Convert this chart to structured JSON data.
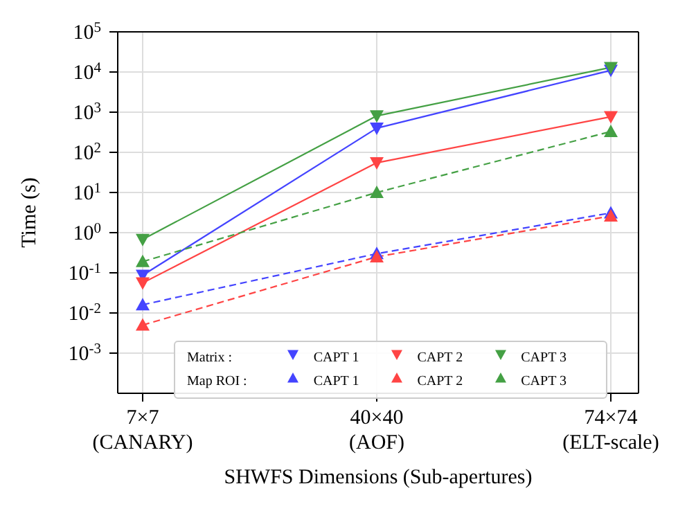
{
  "chart_data": {
    "type": "line",
    "xlabel": "SHWFS Dimensions (Sub-apertures)",
    "ylabel": "Time (s)",
    "categories": [
      "7×7\n(CANARY)",
      "40×40\n(AOF)",
      "74×74\n(ELT-scale)"
    ],
    "series": [
      {
        "name": "CAPT 1",
        "color": "#4444ff",
        "values": [
          0.087,
          400,
          11000
        ],
        "marker": "triangle-down",
        "line_style": "solid"
      },
      {
        "name": "CAPT 2",
        "color": "#ff4444",
        "values": [
          0.056,
          55,
          770
        ],
        "marker": "triangle-down",
        "line_style": "solid"
      },
      {
        "name": "CAPT 3",
        "color": "#44a044",
        "values": [
          0.68,
          810,
          13000
        ],
        "marker": "triangle-down",
        "line_style": "solid"
      },
      {
        "name": "CAPT 1",
        "color": "#4444ff",
        "values": [
          0.016,
          0.3,
          3.1
        ],
        "marker": "triangle",
        "line_style": "dashed"
      },
      {
        "name": "CAPT 2",
        "color": "#ff4444",
        "values": [
          0.005,
          0.25,
          2.6
        ],
        "marker": "triangle",
        "line_style": "dashed"
      },
      {
        "name": "CAPT 3",
        "color": "#44a044",
        "values": [
          0.19,
          10,
          330
        ],
        "marker": "triangle",
        "line_style": "dashed"
      }
    ],
    "annotations": [
      "Matrix :",
      "Map ROI :"
    ],
    "log": "y",
    "ylim": [
      0.0001,
      100000
    ],
    "yticks": [
      {
        "value": 0.001,
        "label": "10$^{-3}$"
      },
      {
        "value": 0.01,
        "label": "10$^{-2}$"
      },
      {
        "value": 0.1,
        "label": "10$^{-1}$"
      },
      {
        "value": 1,
        "label": "10$^{0}$"
      },
      {
        "value": 10,
        "label": "10$^{1}$"
      },
      {
        "value": 100,
        "label": "10$^{2}$"
      },
      {
        "value": 1000,
        "label": "10$^{3}$"
      },
      {
        "value": 10000,
        "label": "10$^{4}$"
      },
      {
        "value": 100000,
        "label": "10$^{5}$"
      }
    ],
    "grid": true,
    "legend": "bottom"
  }
}
